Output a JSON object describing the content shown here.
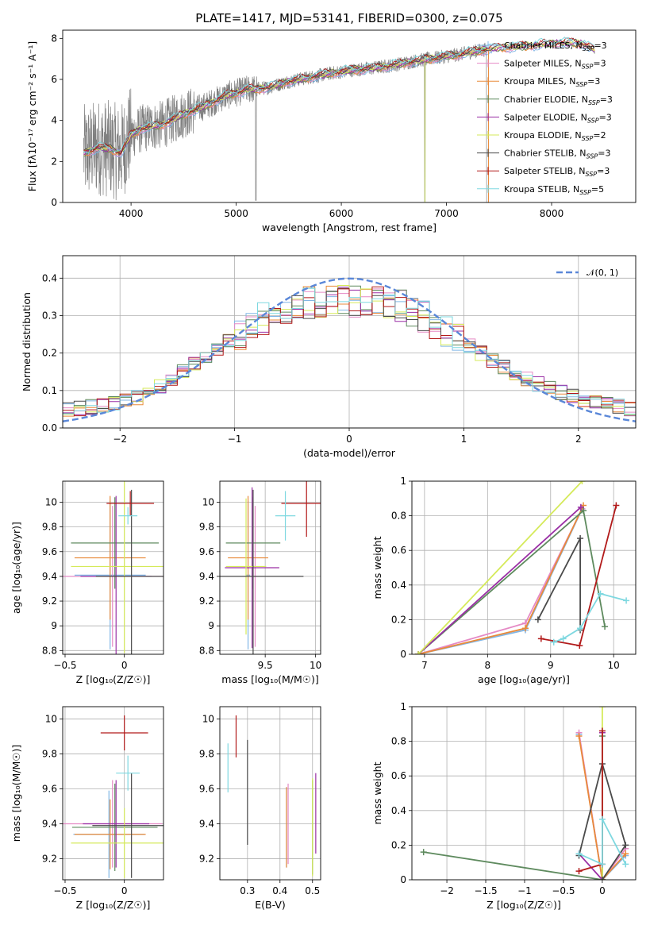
{
  "title": "PLATE=1417, MJD=53141, FIBERID=0300, z=0.075",
  "colors": {
    "Chabrier MILES": "#80b6e6",
    "Salpeter MILES": "#e58ac5",
    "Kroupa MILES": "#e98a3a",
    "Chabrier ELODIE": "#5e8a5e",
    "Salpeter ELODIE": "#9a2fa5",
    "Kroupa ELODIE": "#d5ea5a",
    "Chabrier STELIB": "#4a4a4a",
    "Salpeter STELIB": "#b21a1a",
    "Kroupa STELIB": "#7ed8e0",
    "data": "#808080",
    "normal": "#5a87d8"
  },
  "legend1": [
    {
      "pre": "Chabrier MILES, N",
      "post": "=3",
      "color": "Chabrier MILES"
    },
    {
      "pre": "Salpeter MILES, N",
      "post": "=3",
      "color": "Salpeter MILES"
    },
    {
      "pre": "Kroupa MILES, N",
      "post": "=3",
      "color": "Kroupa MILES"
    },
    {
      "pre": "Chabrier ELODIE, N",
      "post": "=3",
      "color": "Chabrier ELODIE"
    },
    {
      "pre": "Salpeter ELODIE, N",
      "post": "=3",
      "color": "Salpeter ELODIE"
    },
    {
      "pre": "Kroupa ELODIE, N",
      "post": "=2",
      "color": "Kroupa ELODIE"
    },
    {
      "pre": "Chabrier STELIB, N",
      "post": "=3",
      "color": "Chabrier STELIB"
    },
    {
      "pre": "Salpeter STELIB, N",
      "post": "=3",
      "color": "Salpeter STELIB"
    },
    {
      "pre": "Kroupa STELIB, N",
      "post": "=5",
      "color": "Kroupa STELIB"
    }
  ],
  "legend_sub": "SSP",
  "legend2": "𝒩(0, 1)",
  "chart_data": [
    {
      "id": "spectrum",
      "type": "line",
      "xlabel": "wavelength [Angstrom, rest frame]",
      "ylabel": "Flux [fλ10⁻¹⁷ erg cm⁻² s⁻¹ A⁻¹]",
      "xlim": [
        3350,
        8800
      ],
      "ylim": [
        0,
        8.4
      ],
      "xticks": [
        4000,
        5000,
        6000,
        7000,
        8000
      ],
      "yticks": [
        0,
        2,
        4,
        6,
        8
      ],
      "grid": false,
      "legend": "upper right",
      "model_continuum": [
        [
          3550,
          2.4
        ],
        [
          3700,
          2.7
        ],
        [
          3800,
          2.6
        ],
        [
          3900,
          2.4
        ],
        [
          4000,
          3.3
        ],
        [
          4100,
          3.6
        ],
        [
          4300,
          3.8
        ],
        [
          4500,
          4.3
        ],
        [
          4700,
          4.7
        ],
        [
          4900,
          5.2
        ],
        [
          5100,
          5.5
        ],
        [
          5300,
          5.6
        ],
        [
          5500,
          5.9
        ],
        [
          5700,
          6.1
        ],
        [
          5900,
          6.3
        ],
        [
          6100,
          6.45
        ],
        [
          6300,
          6.55
        ],
        [
          6500,
          6.7
        ],
        [
          6700,
          6.9
        ],
        [
          6900,
          7.05
        ],
        [
          7100,
          7.2
        ],
        [
          7300,
          7.4
        ],
        [
          7500,
          7.55
        ],
        [
          7700,
          7.6
        ],
        [
          7900,
          7.7
        ],
        [
          8100,
          7.8
        ],
        [
          8300,
          7.75
        ],
        [
          8420,
          7.4
        ]
      ],
      "data_range": [
        3550,
        7400
      ]
    },
    {
      "id": "residuals",
      "type": "histogram",
      "xlabel": "(data-model)/error",
      "ylabel": "Normed distribution",
      "xlim": [
        -2.5,
        2.5
      ],
      "ylim": [
        0,
        0.46
      ],
      "xticks": [
        -2,
        -1,
        0,
        1,
        2
      ],
      "yticks": [
        0.0,
        0.1,
        0.2,
        0.3,
        0.4
      ],
      "grid": true,
      "legend": "upper right",
      "bin_width": 0.1,
      "mean_profile": [
        [
          -2.5,
          0.045
        ],
        [
          -2.3,
          0.055
        ],
        [
          -2.1,
          0.06
        ],
        [
          -1.9,
          0.075
        ],
        [
          -1.7,
          0.1
        ],
        [
          -1.5,
          0.14
        ],
        [
          -1.3,
          0.18
        ],
        [
          -1.1,
          0.22
        ],
        [
          -0.9,
          0.26
        ],
        [
          -0.7,
          0.3
        ],
        [
          -0.5,
          0.33
        ],
        [
          -0.3,
          0.335
        ],
        [
          -0.1,
          0.34
        ],
        [
          0.1,
          0.34
        ],
        [
          0.3,
          0.335
        ],
        [
          0.5,
          0.32
        ],
        [
          0.7,
          0.29
        ],
        [
          0.9,
          0.25
        ],
        [
          1.1,
          0.21
        ],
        [
          1.3,
          0.17
        ],
        [
          1.5,
          0.14
        ],
        [
          1.7,
          0.11
        ],
        [
          1.9,
          0.09
        ],
        [
          2.1,
          0.07
        ],
        [
          2.3,
          0.06
        ],
        [
          2.5,
          0.05
        ]
      ]
    },
    {
      "id": "age-vs-Z",
      "type": "errorbar",
      "xlabel": "Z [log₁₀(Z/Z☉)]",
      "ylabel": "age  [log₁₀(age/yr)]",
      "xlim": [
        -0.52,
        0.33
      ],
      "ylim": [
        8.77,
        10.17
      ],
      "xticks": [
        -0.5,
        0.0
      ],
      "yticks": [
        8.8,
        9.0,
        9.2,
        9.4,
        9.6,
        9.8,
        10.0
      ],
      "grid": true,
      "points": [
        {
          "model": "Chabrier MILES",
          "x": -0.12,
          "y": 9.41,
          "xerr": 0.3,
          "yerr": 0.6
        },
        {
          "model": "Salpeter MILES",
          "x": -0.1,
          "y": 9.4,
          "xerr": 0.42,
          "yerr": 0.57
        },
        {
          "model": "Kroupa MILES",
          "x": -0.12,
          "y": 9.55,
          "xerr": 0.3,
          "yerr": 0.5
        },
        {
          "model": "Chabrier ELODIE",
          "x": -0.08,
          "y": 9.67,
          "xerr": 0.37,
          "yerr": 0.37
        },
        {
          "model": "Salpeter ELODIE",
          "x": -0.07,
          "y": 9.4,
          "xerr": 0.3,
          "yerr": 0.65
        },
        {
          "model": "Kroupa ELODIE",
          "x": 0.0,
          "y": 9.48,
          "xerr": 0.45,
          "yerr": 0.7
        },
        {
          "model": "Chabrier STELIB",
          "x": 0.06,
          "y": 9.4,
          "xerr": 0.3,
          "yerr": 0.7
        },
        {
          "model": "Salpeter STELIB",
          "x": 0.05,
          "y": 9.99,
          "xerr": 0.2,
          "yerr": 0.1
        },
        {
          "model": "Kroupa STELIB",
          "x": 0.03,
          "y": 9.89,
          "xerr": 0.08,
          "yerr": 0.07
        }
      ]
    },
    {
      "id": "age-vs-mass",
      "type": "errorbar",
      "xlabel": "mass [log₁₀(M/M☉)]",
      "ylabel": "",
      "xlim": [
        9.05,
        10.05
      ],
      "ylim": [
        8.77,
        10.17
      ],
      "xticks": [
        9.5,
        10.0
      ],
      "yticks": [
        8.8,
        9.0,
        9.2,
        9.4,
        9.6,
        9.8,
        10.0
      ],
      "grid": true,
      "points": [
        {
          "model": "Chabrier MILES",
          "x": 9.33,
          "y": 9.41,
          "yerr": 0.6,
          "xerr": 0.02
        },
        {
          "model": "Salpeter MILES",
          "x": 9.4,
          "y": 9.4,
          "yerr": 0.57,
          "xerr": 0.02
        },
        {
          "model": "Kroupa MILES",
          "x": 9.33,
          "y": 9.55,
          "yerr": 0.5,
          "xerr": 0.2
        },
        {
          "model": "Chabrier ELODIE",
          "x": 9.38,
          "y": 9.67,
          "yerr": 0.37,
          "xerr": 0.27
        },
        {
          "model": "Salpeter ELODIE",
          "x": 9.37,
          "y": 9.47,
          "yerr": 0.65,
          "xerr": 0.27
        },
        {
          "model": "Kroupa ELODIE",
          "x": 9.31,
          "y": 9.48,
          "yerr": 0.55,
          "xerr": 0.2
        },
        {
          "model": "Chabrier STELIB",
          "x": 9.38,
          "y": 9.4,
          "yerr": 0.7,
          "xerr": 0.5
        },
        {
          "model": "Salpeter STELIB",
          "x": 9.91,
          "y": 9.99,
          "yerr": 0.27,
          "xerr": 0.25
        },
        {
          "model": "Kroupa STELIB",
          "x": 9.7,
          "y": 9.89,
          "yerr": 0.2,
          "xerr": 0.1
        }
      ]
    },
    {
      "id": "massweight-vs-age",
      "type": "line",
      "xlabel": "age  [log₁₀(age/yr)]",
      "ylabel": "mass weight",
      "xlim": [
        6.8,
        10.35
      ],
      "ylim": [
        0,
        1.0
      ],
      "xticks": [
        7,
        8,
        9,
        10
      ],
      "yticks": [
        0.0,
        0.2,
        0.4,
        0.6,
        0.8,
        1.0
      ],
      "grid": true,
      "series": [
        {
          "model": "Chabrier MILES",
          "x": [
            6.9,
            8.6,
            9.5
          ],
          "y": [
            0.0,
            0.14,
            0.84
          ]
        },
        {
          "model": "Salpeter MILES",
          "x": [
            6.9,
            8.6,
            9.5
          ],
          "y": [
            0.0,
            0.18,
            0.84
          ]
        },
        {
          "model": "Kroupa MILES",
          "x": [
            6.9,
            8.6,
            9.52
          ],
          "y": [
            0.0,
            0.15,
            0.86
          ]
        },
        {
          "model": "Chabrier ELODIE",
          "x": [
            6.9,
            9.52,
            9.86
          ],
          "y": [
            0.0,
            0.83,
            0.16
          ]
        },
        {
          "model": "Salpeter ELODIE",
          "x": [
            6.9,
            9.48
          ],
          "y": [
            0.0,
            0.85
          ]
        },
        {
          "model": "Kroupa ELODIE",
          "x": [
            6.9,
            9.5
          ],
          "y": [
            0.0,
            1.0
          ]
        },
        {
          "model": "Chabrier STELIB",
          "x": [
            8.8,
            9.47,
            9.47
          ],
          "y": [
            0.2,
            0.67,
            0.14
          ]
        },
        {
          "model": "Salpeter STELIB",
          "x": [
            8.85,
            9.46,
            10.04
          ],
          "y": [
            0.09,
            0.05,
            0.86
          ]
        },
        {
          "model": "Kroupa STELIB",
          "x": [
            9.05,
            9.2,
            9.47,
            9.79,
            10.2
          ],
          "y": [
            0.07,
            0.09,
            0.15,
            0.35,
            0.31
          ]
        }
      ]
    },
    {
      "id": "mass-vs-Z",
      "type": "errorbar",
      "xlabel": "Z [log₁₀(Z/Z☉)]",
      "ylabel": "mass [log₁₀(M/M☉)]",
      "xlim": [
        -0.52,
        0.33
      ],
      "ylim": [
        9.08,
        10.07
      ],
      "xticks": [
        -0.5,
        0.0
      ],
      "yticks": [
        9.2,
        9.4,
        9.6,
        9.8,
        10.0
      ],
      "grid": true,
      "points": [
        {
          "model": "Chabrier MILES",
          "x": -0.13,
          "y": 9.34,
          "xerr": 0.3,
          "yerr": 0.25
        },
        {
          "model": "Salpeter MILES",
          "x": -0.1,
          "y": 9.4,
          "xerr": 0.42,
          "yerr": 0.25
        },
        {
          "model": "Kroupa MILES",
          "x": -0.12,
          "y": 9.34,
          "xerr": 0.3,
          "yerr": 0.2
        },
        {
          "model": "Chabrier ELODIE",
          "x": -0.08,
          "y": 9.38,
          "xerr": 0.36,
          "yerr": 0.25
        },
        {
          "model": "Salpeter ELODIE",
          "x": -0.07,
          "y": 9.4,
          "xerr": 0.28,
          "yerr": 0.25
        },
        {
          "model": "Kroupa ELODIE",
          "x": 0.0,
          "y": 9.29,
          "xerr": 0.45,
          "yerr": 0.2
        },
        {
          "model": "Chabrier STELIB",
          "x": 0.06,
          "y": 9.39,
          "xerr": 0.33,
          "yerr": 0.3
        },
        {
          "model": "Salpeter STELIB",
          "x": 0.0,
          "y": 9.92,
          "xerr": 0.2,
          "yerr": 0.1
        },
        {
          "model": "Kroupa STELIB",
          "x": 0.03,
          "y": 9.69,
          "xerr": 0.1,
          "yerr": 0.1
        }
      ]
    },
    {
      "id": "mass-vs-EBV",
      "type": "errorbar",
      "xlabel": "E(B-V)",
      "ylabel": "",
      "xlim": [
        0.215,
        0.525
      ],
      "ylim": [
        9.08,
        10.07
      ],
      "xticks": [
        0.3,
        0.4,
        0.5
      ],
      "yticks": [
        9.2,
        9.4,
        9.6,
        9.8,
        10.0
      ],
      "grid": true,
      "points": [
        {
          "model": "Chabrier MILES",
          "x": 0.42,
          "y": 9.38,
          "xerr": 0.0,
          "yerr": 0.23
        },
        {
          "model": "Salpeter MILES",
          "x": 0.425,
          "y": 9.4,
          "xerr": 0.0,
          "yerr": 0.23
        },
        {
          "model": "Kroupa MILES",
          "x": 0.42,
          "y": 9.38,
          "xerr": 0.0,
          "yerr": 0.23
        },
        {
          "model": "Chabrier ELODIE",
          "x": 0.5,
          "y": 9.38,
          "xerr": 0.0,
          "yerr": 0.27
        },
        {
          "model": "Salpeter ELODIE",
          "x": 0.51,
          "y": 9.46,
          "xerr": 0.0,
          "yerr": 0.23
        },
        {
          "model": "Kroupa ELODIE",
          "x": 0.5,
          "y": 9.38,
          "xerr": 0.0,
          "yerr": 0.28
        },
        {
          "model": "Chabrier STELIB",
          "x": 0.3,
          "y": 9.58,
          "xerr": 0.0,
          "yerr": 0.3
        },
        {
          "model": "Salpeter STELIB",
          "x": 0.265,
          "y": 9.9,
          "xerr": 0.0,
          "yerr": 0.12
        },
        {
          "model": "Kroupa STELIB",
          "x": 0.24,
          "y": 9.72,
          "xerr": 0.0,
          "yerr": 0.14
        }
      ]
    },
    {
      "id": "massweight-vs-Z",
      "type": "line",
      "xlabel": "Z [log₁₀(Z/Z☉)]",
      "ylabel": "mass weight",
      "xlim": [
        -2.45,
        0.43
      ],
      "ylim": [
        0,
        1.0
      ],
      "xticks": [
        -2.0,
        -1.5,
        -1.0,
        -0.5,
        0.0
      ],
      "yticks": [
        0.0,
        0.2,
        0.4,
        0.6,
        0.8,
        1.0
      ],
      "grid": true,
      "series": [
        {
          "model": "Chabrier MILES",
          "x": [
            -0.3,
            0.0,
            0.3
          ],
          "y": [
            0.84,
            0.0,
            0.14
          ]
        },
        {
          "model": "Salpeter MILES",
          "x": [
            -0.3,
            0.0,
            0.3
          ],
          "y": [
            0.85,
            0.0,
            0.18
          ]
        },
        {
          "model": "Kroupa MILES",
          "x": [
            -0.3,
            0.0,
            0.3
          ],
          "y": [
            0.83,
            0.0,
            0.15
          ]
        },
        {
          "model": "Chabrier ELODIE",
          "x": [
            -2.3,
            0.0,
            0.0
          ],
          "y": [
            0.16,
            0.0,
            0.83
          ]
        },
        {
          "model": "Salpeter ELODIE",
          "x": [
            -0.3,
            0.0,
            0.0
          ],
          "y": [
            0.15,
            0.0,
            0.85
          ]
        },
        {
          "model": "Kroupa ELODIE",
          "x": [
            0.0,
            0.0
          ],
          "y": [
            0.0,
            1.0
          ]
        },
        {
          "model": "Chabrier STELIB",
          "x": [
            -0.3,
            0.0,
            0.3,
            0.0
          ],
          "y": [
            0.14,
            0.67,
            0.2,
            0.0
          ]
        },
        {
          "model": "Salpeter STELIB",
          "x": [
            -0.3,
            0.0,
            0.0
          ],
          "y": [
            0.05,
            0.09,
            0.86
          ]
        },
        {
          "model": "Kroupa STELIB",
          "x": [
            -0.3,
            0.0,
            0.0,
            0.3
          ],
          "y": [
            0.15,
            0.09,
            0.35,
            0.09
          ]
        }
      ]
    }
  ]
}
